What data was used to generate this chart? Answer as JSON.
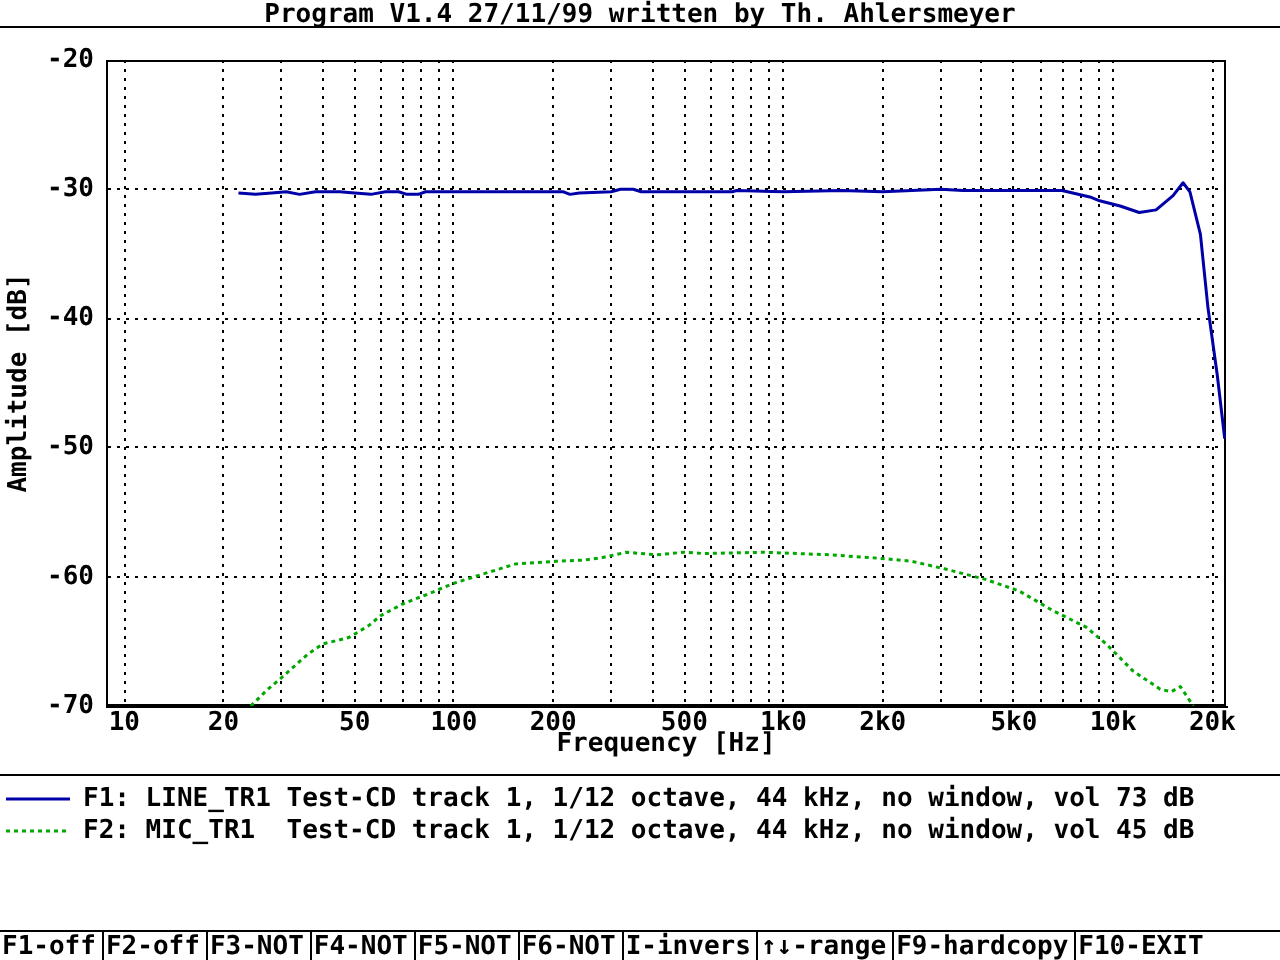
{
  "chart_data": {
    "type": "line",
    "title": "Program V1.4 27/11/99 written by Th. Ahlersmeyer",
    "xlabel": "Frequency [Hz]",
    "ylabel": "Amplitude [dB]",
    "log": "x",
    "grid": true,
    "legend": "bottom",
    "xlim": [
      8.8,
      22000
    ],
    "ylim": [
      -70,
      -20
    ],
    "xticks": [
      10,
      20,
      {
        "value": 30,
        "label": null
      },
      {
        "value": 40,
        "label": null
      },
      50,
      {
        "value": 60,
        "label": null
      },
      {
        "value": 70,
        "label": null
      },
      {
        "value": 80,
        "label": null
      },
      {
        "value": 90,
        "label": null
      },
      100,
      200,
      {
        "value": 300,
        "label": null
      },
      {
        "value": 400,
        "label": null
      },
      500,
      {
        "value": 600,
        "label": null
      },
      {
        "value": 700,
        "label": null
      },
      {
        "value": 800,
        "label": null
      },
      {
        "value": 900,
        "label": null
      },
      {
        "value": 1000,
        "label": "1k0"
      },
      {
        "value": 2000,
        "label": "2k0"
      },
      {
        "value": 3000,
        "label": null
      },
      {
        "value": 4000,
        "label": null
      },
      {
        "value": 5000,
        "label": "5k0"
      },
      {
        "value": 6000,
        "label": null
      },
      {
        "value": 7000,
        "label": null
      },
      {
        "value": 8000,
        "label": null
      },
      {
        "value": 9000,
        "label": null
      },
      {
        "value": 10000,
        "label": "10k"
      },
      {
        "value": 20000,
        "label": "20k"
      }
    ],
    "yticks": [
      -70,
      -60,
      -50,
      -40,
      -30,
      -20
    ],
    "series": [
      {
        "name": "F1: LINE_TR1 Test-CD track 1, 1/12 octave, 44 kHz, no window, vol 73 dB",
        "color": "#0000a8",
        "line_style": "solid",
        "x": [
          22.2,
          25,
          28,
          31,
          34,
          38,
          45,
          50,
          56,
          62,
          68,
          72,
          78,
          82,
          100,
          150,
          215,
          225,
          240,
          300,
          320,
          350,
          370,
          450,
          700,
          720,
          1000,
          1500,
          2000,
          3000,
          3500,
          5000,
          7000,
          8500,
          9100,
          10500,
          12000,
          13500,
          15200,
          16300,
          17100,
          18400,
          19400,
          20700,
          21800
        ],
        "values": [
          -30.3,
          -30.4,
          -30.3,
          -30.2,
          -30.4,
          -30.2,
          -30.2,
          -30.3,
          -30.4,
          -30.2,
          -30.2,
          -30.4,
          -30.4,
          -30.2,
          -30.2,
          -30.2,
          -30.2,
          -30.4,
          -30.3,
          -30.2,
          -30.0,
          -30.0,
          -30.2,
          -30.2,
          -30.2,
          -30.1,
          -30.2,
          -30.1,
          -30.2,
          -30.0,
          -30.1,
          -30.1,
          -30.1,
          -30.6,
          -30.9,
          -31.3,
          -31.8,
          -31.6,
          -30.5,
          -29.5,
          -30.2,
          -33.5,
          -39.2,
          -44.4,
          -49.3
        ]
      },
      {
        "name": "F2: MIC_TR1  Test-CD track 1, 1/12 octave, 44 kHz, no window, vol 45 dB",
        "color": "#00a800",
        "line_style": "dotted",
        "x": [
          24.2,
          27,
          30,
          36,
          40,
          48,
          55,
          60,
          70,
          84,
          100,
          122,
          154,
          204,
          250,
          283,
          334,
          412,
          497,
          572,
          873,
          1390,
          2030,
          2450,
          3100,
          4100,
          5190,
          6550,
          8280,
          9530,
          11500,
          13900,
          15000,
          16000,
          17500
        ],
        "values": [
          -70,
          -68.8,
          -67.8,
          -66.0,
          -65.2,
          -64.7,
          -63.8,
          -63.0,
          -62.1,
          -61.3,
          -60.5,
          -59.8,
          -59.0,
          -58.8,
          -58.7,
          -58.5,
          -58.1,
          -58.3,
          -58.1,
          -58.2,
          -58.1,
          -58.3,
          -58.6,
          -58.8,
          -59.4,
          -60.2,
          -61.1,
          -62.6,
          -63.9,
          -65.2,
          -67.3,
          -68.7,
          -68.9,
          -68.5,
          -70
        ]
      }
    ],
    "annotations": [
      "F1-off",
      "F2-off",
      "F3-NOT",
      "F4-NOT",
      "F5-NOT",
      "F6-NOT",
      "I-invers",
      "↑↓-range",
      "F9-hardcopy",
      "F10-EXIT"
    ]
  }
}
